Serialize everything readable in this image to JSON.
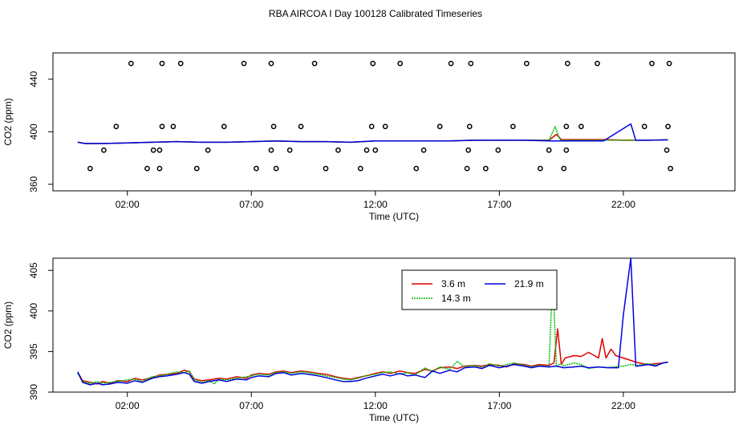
{
  "title": "RBA AIRCOA I  Day 100128  Calibrated Timeseries",
  "colors": {
    "3.6 m": "#e00000",
    "14.3 m": "#00bb00",
    "21.9 m": "#0000e0",
    "markers": "#000000"
  },
  "chart_data": [
    {
      "type": "line",
      "title": "",
      "xlabel": "Time (UTC)",
      "ylabel": "CO2 (ppm)",
      "x_ticks": [
        "02:00",
        "07:00",
        "12:00",
        "17:00",
        "22:00"
      ],
      "y_ticks": [
        360,
        400,
        440
      ],
      "ylim": [
        355,
        460
      ],
      "xlim_hours": [
        -1.0,
        26.5
      ],
      "grid": false,
      "series": [
        {
          "x": [
            0.0,
            0.3,
            1.0,
            2.0,
            3.0,
            4.0,
            5.0,
            6.0,
            7.0,
            8.0,
            9.0,
            10.0,
            11.0,
            12.0,
            13.0,
            14.0,
            15.0,
            16.0,
            17.0,
            18.0,
            19.0,
            19.3,
            19.5,
            20.0,
            21.0,
            21.3,
            22.0,
            23.0,
            23.8
          ],
          "y": [
            392,
            391,
            391,
            391.5,
            392,
            392.5,
            392,
            392,
            392.5,
            393,
            392.5,
            392.5,
            392,
            393,
            393,
            393,
            393,
            393.5,
            393.5,
            393.5,
            393.5,
            398,
            394,
            394,
            394,
            394,
            393.5,
            393.5,
            393.8
          ]
        },
        {
          "x": [
            0.0,
            0.3,
            1.0,
            2.0,
            3.0,
            4.0,
            5.0,
            6.0,
            7.0,
            8.0,
            9.0,
            10.0,
            11.0,
            12.0,
            13.0,
            14.0,
            15.0,
            16.0,
            17.0,
            18.0,
            19.0,
            19.25,
            19.45,
            20.0,
            21.0,
            22.0,
            23.0,
            23.8
          ],
          "y": [
            392,
            391,
            391,
            391.5,
            392,
            392.5,
            392,
            392,
            392.5,
            393,
            392.5,
            392.5,
            392,
            393,
            393,
            393,
            393,
            393.5,
            393.5,
            393.5,
            393.5,
            404,
            393.5,
            393.5,
            393.5,
            393.5,
            393.5,
            393.8
          ]
        },
        {
          "x": [
            0.0,
            0.3,
            1.0,
            2.0,
            3.0,
            4.0,
            5.0,
            6.0,
            7.0,
            8.0,
            9.0,
            10.0,
            11.0,
            12.0,
            13.0,
            14.0,
            15.0,
            16.0,
            17.0,
            18.0,
            19.0,
            20.0,
            21.2,
            22.3,
            22.5,
            23.0,
            23.8
          ],
          "y": [
            392,
            391,
            391,
            391.5,
            392,
            392.5,
            392,
            392,
            392.5,
            393,
            392.5,
            392.5,
            392,
            393,
            393,
            393,
            393,
            393.5,
            393.5,
            393.5,
            393,
            393,
            393,
            406,
            393.5,
            393.5,
            393.8
          ]
        }
      ],
      "markers": {
        "x": [
          0.5,
          1.05,
          1.55,
          2.15,
          2.8,
          3.05,
          3.3,
          3.3,
          3.4,
          3.4,
          3.85,
          4.15,
          4.8,
          5.25,
          5.9,
          6.7,
          7.2,
          7.8,
          7.8,
          7.9,
          8.0,
          8.55,
          9.0,
          9.55,
          10.0,
          10.5,
          11.4,
          11.65,
          11.85,
          11.9,
          12.0,
          12.4,
          13.0,
          13.65,
          13.95,
          14.6,
          15.05,
          15.7,
          15.75,
          15.8,
          15.85,
          16.45,
          16.95,
          17.55,
          18.1,
          18.65,
          19.0,
          19.6,
          19.7,
          19.7,
          19.75,
          20.3,
          20.95,
          22.85,
          23.15,
          23.75,
          23.8,
          23.85,
          23.9
        ],
        "y": [
          372,
          386,
          404,
          452,
          372,
          386,
          372,
          386,
          452,
          404,
          404,
          452,
          372,
          386,
          404,
          452,
          372,
          386,
          452,
          404,
          372,
          386,
          404,
          452,
          372,
          386,
          372,
          386,
          404,
          452,
          386,
          404,
          452,
          372,
          386,
          404,
          452,
          372,
          386,
          404,
          452,
          372,
          386,
          404,
          452,
          372,
          386,
          372,
          386,
          404,
          452,
          404,
          452,
          404,
          452,
          386,
          404,
          452,
          372
        ]
      }
    },
    {
      "type": "line",
      "title": "",
      "xlabel": "Time (UTC)",
      "ylabel": "CO2 (ppm)",
      "x_ticks": [
        "02:00",
        "07:00",
        "12:00",
        "17:00",
        "22:00"
      ],
      "y_ticks": [
        390,
        395,
        400,
        405
      ],
      "ylim": [
        390,
        406.5
      ],
      "xlim_hours": [
        -1.0,
        26.5
      ],
      "grid": false,
      "legend": {
        "position": "top-right",
        "entries": [
          "3.6 m",
          "14.3 m",
          "21.9 m"
        ]
      },
      "series": [
        {
          "name": "3.6 m",
          "x": [
            0.0,
            0.2,
            0.5,
            0.8,
            1.0,
            1.3,
            1.6,
            2.0,
            2.3,
            2.6,
            3.0,
            3.3,
            3.6,
            4.0,
            4.3,
            4.5,
            4.7,
            5.0,
            5.3,
            5.7,
            6.0,
            6.4,
            6.8,
            7.0,
            7.3,
            7.7,
            8.0,
            8.3,
            8.6,
            9.0,
            9.3,
            9.7,
            10.0,
            10.4,
            10.7,
            11.0,
            11.3,
            11.6,
            12.0,
            12.3,
            12.6,
            13.0,
            13.3,
            13.6,
            14.0,
            14.3,
            14.6,
            15.0,
            15.3,
            15.6,
            16.0,
            16.3,
            16.6,
            17.0,
            17.3,
            17.6,
            18.0,
            18.3,
            18.6,
            19.0,
            19.2,
            19.35,
            19.5,
            19.65,
            20.0,
            20.3,
            20.6,
            21.0,
            21.15,
            21.3,
            21.5,
            21.7,
            22.0,
            22.3,
            22.5,
            22.8,
            23.0,
            23.3,
            23.6,
            23.8
          ],
          "y": [
            392.4,
            391.4,
            391.2,
            391.0,
            391.3,
            391.1,
            391.4,
            391.3,
            391.7,
            391.5,
            391.8,
            392.1,
            392.2,
            392.3,
            392.7,
            392.5,
            391.6,
            391.4,
            391.5,
            391.7,
            391.6,
            391.9,
            391.7,
            392.1,
            392.3,
            392.2,
            392.5,
            392.6,
            392.4,
            392.6,
            392.5,
            392.3,
            392.2,
            391.9,
            391.7,
            391.6,
            391.8,
            392.0,
            392.3,
            392.5,
            392.3,
            392.6,
            392.4,
            392.3,
            392.8,
            392.6,
            393.0,
            393.1,
            392.9,
            393.2,
            393.3,
            393.2,
            393.4,
            393.3,
            393.1,
            393.5,
            393.4,
            393.2,
            393.4,
            393.3,
            393.6,
            397.8,
            393.4,
            394.2,
            394.5,
            394.4,
            394.9,
            394.2,
            396.6,
            394.2,
            395.3,
            394.5,
            394.2,
            393.9,
            393.7,
            393.5,
            393.4,
            393.5,
            393.6,
            393.7
          ]
        },
        {
          "name": "14.3 m",
          "x": [
            0.0,
            0.2,
            0.5,
            0.8,
            1.0,
            1.3,
            1.6,
            2.0,
            2.3,
            2.6,
            3.0,
            3.3,
            3.6,
            4.0,
            4.3,
            4.5,
            4.7,
            5.0,
            5.3,
            5.5,
            5.7,
            6.0,
            6.4,
            6.8,
            7.0,
            7.3,
            7.7,
            8.0,
            8.3,
            8.6,
            9.0,
            9.3,
            9.7,
            10.0,
            10.4,
            10.7,
            11.0,
            11.3,
            11.6,
            12.0,
            12.3,
            12.6,
            13.0,
            13.3,
            13.6,
            14.0,
            14.3,
            14.6,
            15.0,
            15.3,
            15.6,
            16.0,
            16.3,
            16.6,
            17.0,
            17.3,
            17.6,
            18.0,
            18.3,
            18.6,
            19.0,
            19.15,
            19.3,
            19.45,
            19.6,
            20.0,
            20.3,
            20.6,
            21.0,
            21.3,
            21.6,
            22.0,
            22.3,
            22.6,
            23.0,
            23.3,
            23.6,
            23.8
          ],
          "y": [
            392.3,
            391.3,
            391.1,
            391.3,
            391.1,
            391.2,
            391.3,
            391.5,
            391.6,
            391.3,
            391.9,
            392.0,
            392.2,
            392.5,
            392.4,
            392.6,
            391.5,
            391.2,
            391.4,
            391.0,
            391.6,
            391.5,
            391.7,
            391.9,
            392.0,
            392.2,
            392.1,
            392.4,
            392.5,
            392.3,
            392.5,
            392.4,
            392.2,
            392.0,
            391.8,
            391.6,
            391.5,
            391.7,
            392.0,
            392.2,
            392.4,
            392.5,
            392.2,
            392.4,
            392.1,
            393.0,
            392.5,
            393.1,
            392.8,
            393.8,
            393.1,
            393.3,
            393.0,
            393.5,
            393.2,
            393.4,
            393.6,
            393.3,
            393.1,
            393.3,
            393.1,
            404.2,
            393.1,
            393.5,
            393.2,
            393.6,
            393.4,
            392.9,
            393.1,
            393.0,
            393.1,
            393.2,
            393.4,
            393.3,
            393.5,
            393.3,
            393.6,
            393.7
          ]
        },
        {
          "name": "21.9 m",
          "x": [
            0.0,
            0.2,
            0.5,
            0.8,
            1.0,
            1.3,
            1.6,
            2.0,
            2.3,
            2.6,
            3.0,
            3.3,
            3.6,
            4.0,
            4.3,
            4.5,
            4.7,
            5.0,
            5.3,
            5.7,
            6.0,
            6.4,
            6.8,
            7.0,
            7.3,
            7.7,
            8.0,
            8.3,
            8.6,
            9.0,
            9.3,
            9.7,
            10.0,
            10.4,
            10.7,
            11.0,
            11.3,
            11.6,
            12.0,
            12.3,
            12.6,
            13.0,
            13.3,
            13.6,
            14.0,
            14.3,
            14.6,
            15.0,
            15.3,
            15.6,
            16.0,
            16.3,
            16.6,
            17.0,
            17.3,
            17.6,
            18.0,
            18.3,
            18.6,
            19.0,
            19.3,
            19.6,
            20.0,
            20.3,
            20.6,
            21.0,
            21.4,
            21.8,
            22.0,
            22.3,
            22.5,
            22.8,
            23.0,
            23.3,
            23.6,
            23.8
          ],
          "y": [
            392.5,
            391.2,
            390.9,
            391.1,
            390.9,
            391.0,
            391.2,
            391.1,
            391.4,
            391.2,
            391.7,
            391.9,
            392.0,
            392.2,
            392.4,
            392.2,
            391.3,
            391.1,
            391.3,
            391.5,
            391.3,
            391.6,
            391.5,
            391.8,
            392.0,
            391.9,
            392.3,
            392.4,
            392.1,
            392.3,
            392.2,
            392.0,
            391.8,
            391.5,
            391.3,
            391.3,
            391.4,
            391.7,
            392.0,
            392.2,
            392.0,
            392.3,
            392.0,
            392.1,
            391.8,
            392.6,
            392.3,
            392.7,
            392.5,
            393.0,
            393.1,
            392.9,
            393.3,
            393.0,
            393.2,
            393.4,
            393.2,
            393.0,
            393.2,
            393.1,
            393.2,
            393.0,
            393.1,
            393.2,
            393.0,
            393.1,
            393.0,
            393.0,
            399.5,
            406.5,
            393.2,
            393.3,
            393.4,
            393.2,
            393.6,
            393.7
          ]
        }
      ]
    }
  ]
}
